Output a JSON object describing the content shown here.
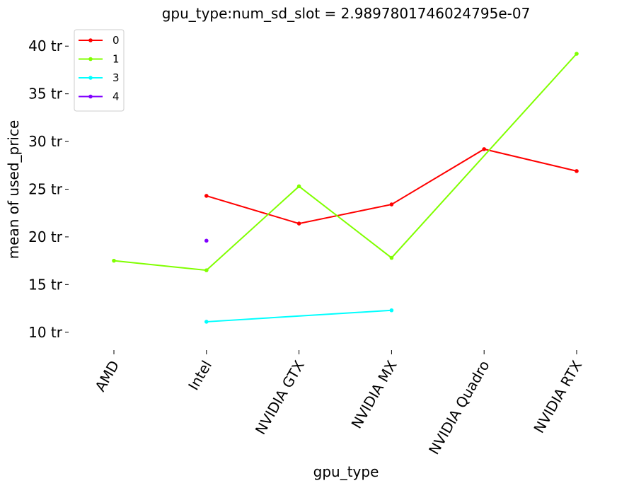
{
  "chart_data": {
    "type": "line",
    "title": "gpu_type:num_sd_slot = 2.9897801746024795e-07",
    "xlabel": "gpu_type",
    "ylabel": "mean of used_price",
    "categories": [
      "AMD",
      "Intel",
      "NVIDIA GTX",
      "NVIDIA MX",
      "NVIDIA Quadro",
      "NVIDIA RTX"
    ],
    "y_ticks": [
      {
        "value": 10,
        "label": "10 tr"
      },
      {
        "value": 15,
        "label": "15 tr"
      },
      {
        "value": 20,
        "label": "20 tr"
      },
      {
        "value": 25,
        "label": "25 tr"
      },
      {
        "value": 30,
        "label": "30 tr"
      },
      {
        "value": 35,
        "label": "35 tr"
      },
      {
        "value": 40,
        "label": "40 tr"
      }
    ],
    "ylim": [
      8.5,
      41.5
    ],
    "y_unit": "tr",
    "grid": false,
    "legend_position": "top-left",
    "series": [
      {
        "name": "0",
        "color": "#ff0000",
        "values": [
          null,
          24.3,
          21.4,
          23.4,
          29.2,
          26.9
        ]
      },
      {
        "name": "1",
        "color": "#80ff00",
        "values": [
          17.5,
          16.5,
          25.3,
          17.8,
          null,
          39.2
        ]
      },
      {
        "name": "3",
        "color": "#00ffff",
        "values": [
          null,
          11.1,
          null,
          12.3,
          null,
          null
        ]
      },
      {
        "name": "4",
        "color": "#8000ff",
        "values": [
          null,
          19.6,
          null,
          null,
          null,
          null
        ]
      }
    ]
  }
}
